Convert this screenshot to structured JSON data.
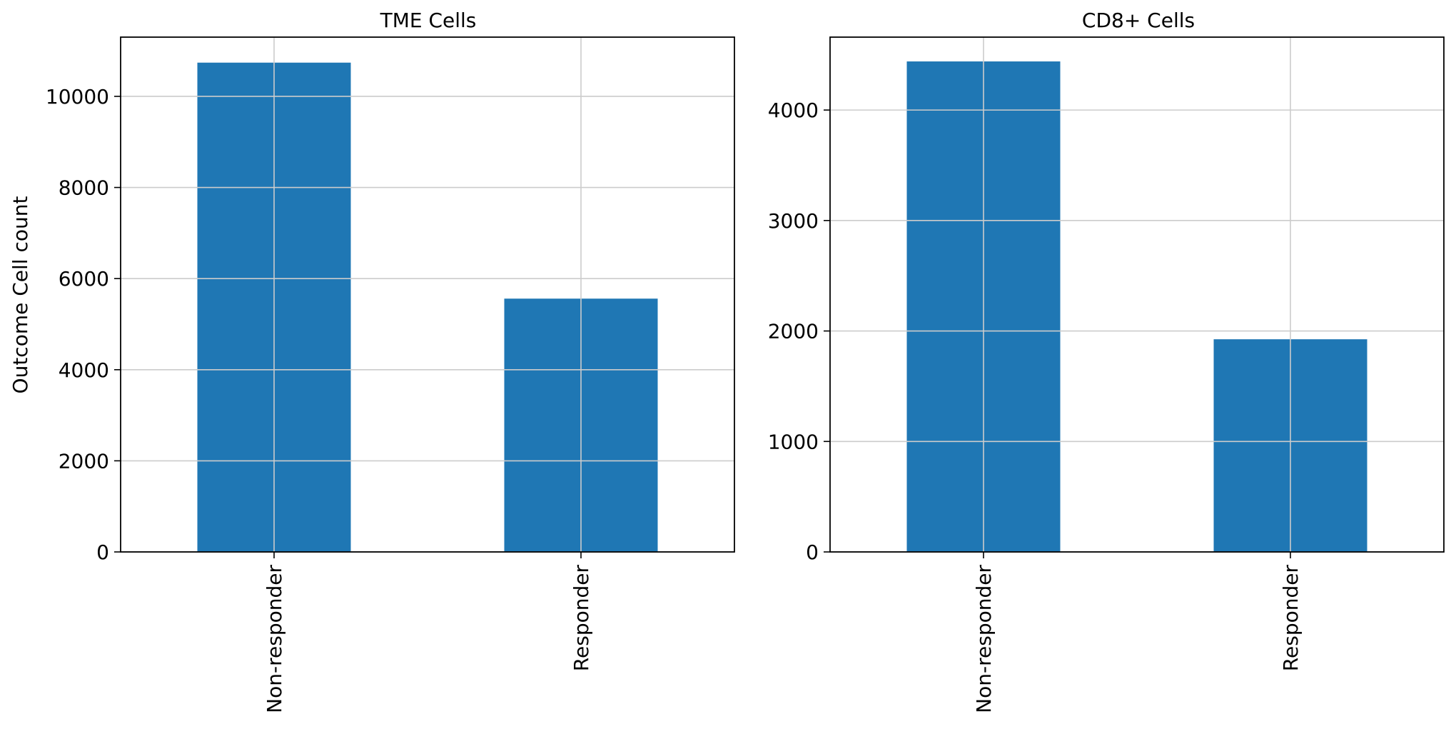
{
  "chart_data": [
    {
      "type": "bar",
      "title": "TME Cells",
      "xlabel": "",
      "ylabel": "Outcome  Cell count",
      "categories": [
        "Non-responder",
        "Responder"
      ],
      "values": [
        10740,
        5560
      ],
      "ylim": [
        0,
        11300
      ],
      "yticks": [
        0,
        2000,
        4000,
        6000,
        8000,
        10000
      ],
      "grid": true,
      "bar_color": "#1f77b4",
      "grid_color": "#cccccc"
    },
    {
      "type": "bar",
      "title": "CD8+ Cells",
      "xlabel": "",
      "ylabel": "",
      "categories": [
        "Non-responder",
        "Responder"
      ],
      "values": [
        4440,
        1925
      ],
      "ylim": [
        0,
        4660
      ],
      "yticks": [
        0,
        1000,
        2000,
        3000,
        4000
      ],
      "grid": true,
      "bar_color": "#1f77b4",
      "grid_color": "#cccccc"
    }
  ]
}
